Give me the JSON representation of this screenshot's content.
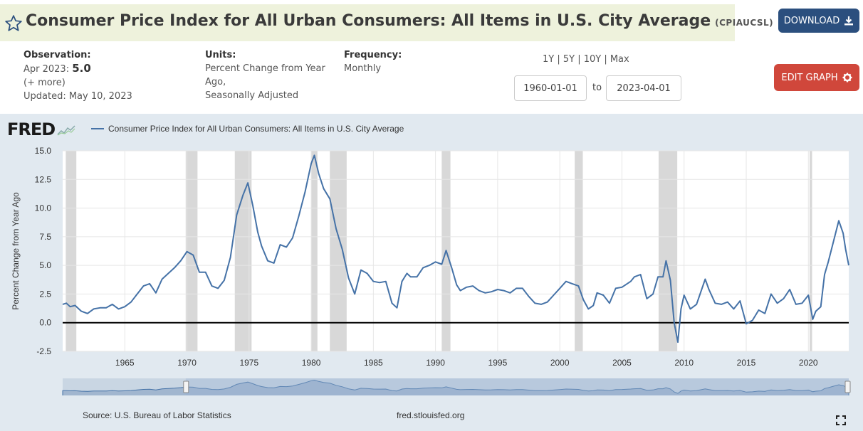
{
  "header": {
    "title": "Consumer Price Index for All Urban Consumers: All Items in U.S. City Average",
    "series_id": "(CPIAUCSL)",
    "download_label": "DOWNLOAD",
    "star_icon": "star-outline-icon",
    "download_icon": "download-icon"
  },
  "meta": {
    "observation_label": "Observation:",
    "observation_date": "Apr 2023:",
    "observation_value": "5.0",
    "more": "(+ more)",
    "updated": "Updated: May 10, 2023",
    "units_label": "Units:",
    "units_line1": "Percent Change from Year",
    "units_line2": "Ago,",
    "units_line3": "Seasonally Adjusted",
    "frequency_label": "Frequency:",
    "frequency_value": "Monthly"
  },
  "controls": {
    "range_links": "1Y | 5Y | 10Y | Max",
    "start_date": "1960-01-01",
    "to_label": "to",
    "end_date": "2023-04-01",
    "edit_label": "EDIT GRAPH",
    "edit_icon": "gear-icon"
  },
  "chart": {
    "logo": "FRED",
    "legend": "Consumer Price Index for All Urban Consumers: All Items in U.S. City Average",
    "source": "Source: U.S. Bureau of Labor Statistics",
    "site": "fred.stlouisfed.org",
    "fullscreen_icon": "fullscreen-icon"
  },
  "chart_data": {
    "type": "line",
    "title": "",
    "ylabel": "Percent Change from Year Ago",
    "xlabel": "",
    "ylim": [
      -2.5,
      15.0
    ],
    "xlim": [
      1960.0,
      2023.25
    ],
    "yticks": [
      "15.0",
      "12.5",
      "10.0",
      "7.5",
      "5.0",
      "2.5",
      "0.0",
      "-2.5"
    ],
    "xticks": [
      "1965",
      "1970",
      "1975",
      "1980",
      "1985",
      "1990",
      "1995",
      "2000",
      "2005",
      "2010",
      "2015",
      "2020"
    ],
    "grid": true,
    "line_color": "#4572a7",
    "recession_color": "#d8d8d8",
    "recessions": [
      [
        1960.25,
        1961.1
      ],
      [
        1969.9,
        1970.85
      ],
      [
        1973.85,
        1975.2
      ],
      [
        1980.0,
        1980.5
      ],
      [
        1981.5,
        1982.85
      ],
      [
        1990.5,
        1991.2
      ],
      [
        2001.2,
        2001.85
      ],
      [
        2007.95,
        2009.45
      ],
      [
        2020.1,
        2020.3
      ]
    ],
    "series": [
      {
        "name": "Consumer Price Index for All Urban Consumers: All Items in U.S. City Average",
        "x": [
          1960.0,
          1960.3,
          1960.6,
          1961.0,
          1961.5,
          1962.0,
          1962.5,
          1963.0,
          1963.5,
          1964.0,
          1964.5,
          1965.0,
          1965.5,
          1966.0,
          1966.5,
          1967.0,
          1967.5,
          1968.0,
          1968.5,
          1969.0,
          1969.5,
          1970.0,
          1970.5,
          1971.0,
          1971.5,
          1972.0,
          1972.5,
          1973.0,
          1973.5,
          1974.0,
          1974.5,
          1974.9,
          1975.3,
          1975.7,
          1976.0,
          1976.5,
          1977.0,
          1977.5,
          1978.0,
          1978.5,
          1979.0,
          1979.5,
          1980.0,
          1980.25,
          1980.6,
          1981.0,
          1981.5,
          1982.0,
          1982.5,
          1983.0,
          1983.5,
          1984.0,
          1984.5,
          1985.0,
          1985.5,
          1986.0,
          1986.5,
          1986.9,
          1987.3,
          1987.7,
          1988.0,
          1988.5,
          1989.0,
          1989.5,
          1990.0,
          1990.5,
          1990.85,
          1991.3,
          1991.7,
          1992.0,
          1992.5,
          1993.0,
          1993.5,
          1994.0,
          1994.5,
          1995.0,
          1995.5,
          1996.0,
          1996.5,
          1997.0,
          1997.5,
          1998.0,
          1998.5,
          1999.0,
          1999.5,
          2000.0,
          2000.5,
          2001.0,
          2001.5,
          2001.9,
          2002.3,
          2002.7,
          2003.0,
          2003.5,
          2004.0,
          2004.5,
          2005.0,
          2005.7,
          2006.0,
          2006.5,
          2007.0,
          2007.5,
          2007.9,
          2008.3,
          2008.55,
          2008.9,
          2009.2,
          2009.5,
          2009.75,
          2010.0,
          2010.5,
          2011.0,
          2011.7,
          2012.0,
          2012.5,
          2013.0,
          2013.5,
          2014.0,
          2014.5,
          2015.0,
          2015.5,
          2016.0,
          2016.5,
          2017.0,
          2017.5,
          2018.0,
          2018.5,
          2019.0,
          2019.5,
          2020.0,
          2020.35,
          2020.6,
          2021.0,
          2021.3,
          2021.6,
          2022.0,
          2022.45,
          2022.8,
          2023.0,
          2023.25
        ],
        "values": [
          1.6,
          1.7,
          1.4,
          1.5,
          1.0,
          0.8,
          1.2,
          1.3,
          1.3,
          1.6,
          1.2,
          1.4,
          1.8,
          2.5,
          3.2,
          3.4,
          2.6,
          3.8,
          4.3,
          4.8,
          5.4,
          6.2,
          5.9,
          4.4,
          4.4,
          3.2,
          3.0,
          3.7,
          5.7,
          9.4,
          11.1,
          12.2,
          10.2,
          7.9,
          6.7,
          5.4,
          5.2,
          6.8,
          6.6,
          7.4,
          9.3,
          11.4,
          13.9,
          14.6,
          13.0,
          11.7,
          10.8,
          8.2,
          6.4,
          3.9,
          2.5,
          4.6,
          4.3,
          3.6,
          3.5,
          3.6,
          1.7,
          1.3,
          3.6,
          4.3,
          4.0,
          4.0,
          4.8,
          5.0,
          5.3,
          5.1,
          6.3,
          4.8,
          3.3,
          2.8,
          3.1,
          3.2,
          2.8,
          2.6,
          2.7,
          2.9,
          2.8,
          2.6,
          3.0,
          3.0,
          2.3,
          1.7,
          1.6,
          1.8,
          2.4,
          3.0,
          3.6,
          3.4,
          3.2,
          2.0,
          1.2,
          1.5,
          2.6,
          2.4,
          1.7,
          3.0,
          3.1,
          3.6,
          4.0,
          4.2,
          2.1,
          2.5,
          4.0,
          4.0,
          5.4,
          3.7,
          0.0,
          -1.7,
          1.2,
          2.4,
          1.2,
          1.6,
          3.8,
          2.9,
          1.7,
          1.6,
          1.8,
          1.2,
          1.9,
          -0.1,
          0.2,
          1.1,
          0.8,
          2.5,
          1.7,
          2.1,
          2.9,
          1.6,
          1.7,
          2.4,
          0.3,
          1.0,
          1.4,
          4.2,
          5.3,
          7.0,
          8.9,
          7.8,
          6.4,
          5.0
        ]
      }
    ]
  }
}
